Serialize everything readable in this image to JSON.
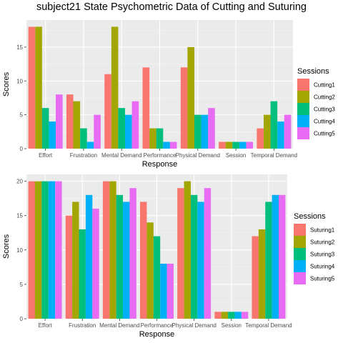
{
  "title": "subject21 State Psychometric Data of Cutting and Suturing",
  "chart_data": [
    {
      "type": "bar",
      "categories": [
        "Effort",
        "Frustration",
        "Mental Demand",
        "Performance",
        "Physical Demand",
        "Session",
        "Temporal Demand"
      ],
      "xlabel": "Response",
      "ylabel": "Scores",
      "ylim": [
        0,
        19
      ],
      "yticks": [
        0,
        5,
        10,
        15
      ],
      "grid": true,
      "legend_title": "Sessions",
      "legend_position": "right",
      "series": [
        {
          "name": "Cutting1",
          "color": "#F8766D",
          "values": [
            18,
            8,
            11,
            12,
            12,
            1,
            3
          ]
        },
        {
          "name": "Cutting2",
          "color": "#A3A500",
          "values": [
            18,
            7,
            18,
            3,
            15,
            1,
            5
          ]
        },
        {
          "name": "Cutting3",
          "color": "#00BF7D",
          "values": [
            6,
            3,
            6,
            3,
            5,
            1,
            7
          ]
        },
        {
          "name": "Cutting4",
          "color": "#00B0F6",
          "values": [
            4,
            1,
            5,
            1,
            5,
            1,
            4
          ]
        },
        {
          "name": "Cutting5",
          "color": "#E76BF3",
          "values": [
            8,
            5,
            7,
            1,
            6,
            1,
            5
          ]
        }
      ]
    },
    {
      "type": "bar",
      "categories": [
        "Effort",
        "Frustration",
        "Mental Demand",
        "Performance",
        "Physical Demand",
        "Session",
        "Temporal Demand"
      ],
      "xlabel": "Response",
      "ylabel": "Scores",
      "ylim": [
        0,
        21
      ],
      "yticks": [
        0,
        5,
        10,
        15,
        20
      ],
      "grid": true,
      "legend_title": "Sessions",
      "legend_position": "right",
      "series": [
        {
          "name": "Suturing1",
          "color": "#F8766D",
          "values": [
            20,
            15,
            20,
            17,
            19,
            1,
            12
          ]
        },
        {
          "name": "Suturing2",
          "color": "#A3A500",
          "values": [
            20,
            17,
            20,
            14,
            20,
            1,
            13
          ]
        },
        {
          "name": "Suturing3",
          "color": "#00BF7D",
          "values": [
            20,
            13,
            18,
            12,
            18,
            1,
            17
          ]
        },
        {
          "name": "Suturing4",
          "color": "#00B0F6",
          "values": [
            20,
            18,
            17,
            8,
            17,
            1,
            18
          ]
        },
        {
          "name": "Suturing5",
          "color": "#E76BF3",
          "values": [
            20,
            16,
            19,
            8,
            19,
            1,
            18
          ]
        }
      ]
    }
  ]
}
